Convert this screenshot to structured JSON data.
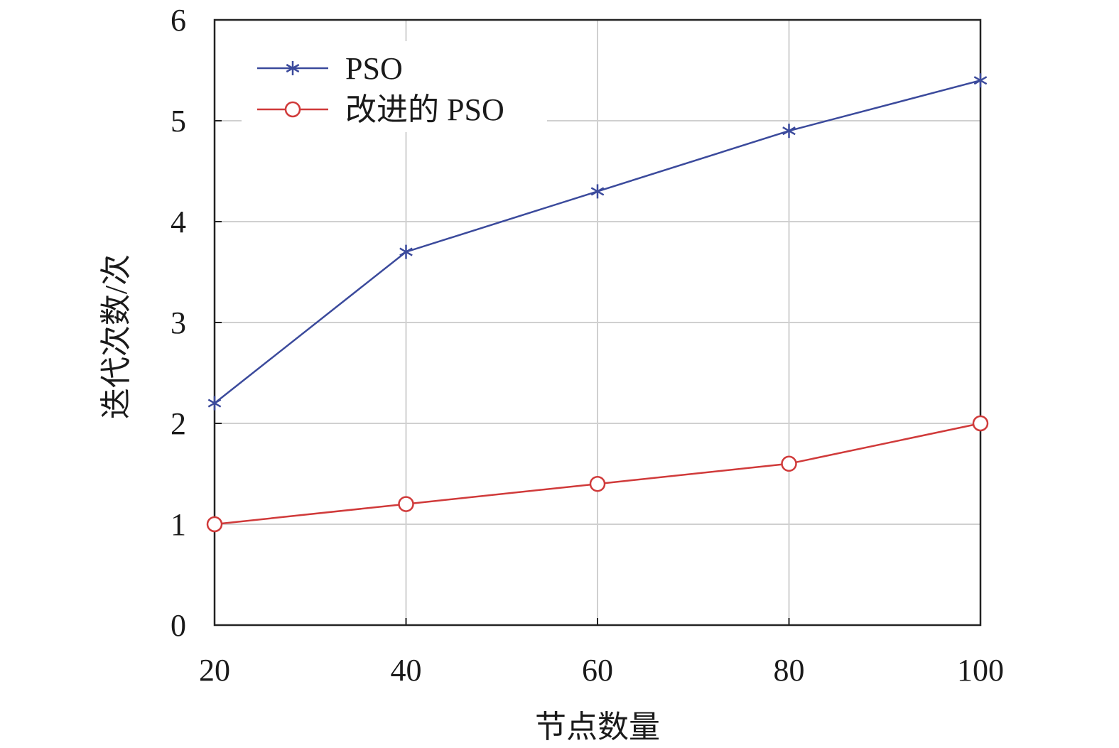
{
  "chart_data": {
    "type": "line",
    "title": "",
    "xlabel": "节点数量",
    "ylabel": "迭代次数/次",
    "x": [
      20,
      40,
      60,
      80,
      100
    ],
    "xlim": [
      20,
      100
    ],
    "ylim": [
      0,
      6
    ],
    "xticks": [
      "20",
      "40",
      "60",
      "80",
      "100"
    ],
    "yticks": [
      "0",
      "1",
      "2",
      "3",
      "4",
      "5",
      "6"
    ],
    "grid": true,
    "legend_position": "top-left",
    "series": [
      {
        "name": "PSO",
        "values": [
          2.2,
          3.7,
          4.3,
          4.9,
          5.4
        ],
        "color": "#3b4a9c",
        "marker": "asterisk"
      },
      {
        "name": "改进的 PSO",
        "values": [
          1.0,
          1.2,
          1.4,
          1.6,
          2.0
        ],
        "color": "#d03a3a",
        "marker": "circle"
      }
    ]
  }
}
